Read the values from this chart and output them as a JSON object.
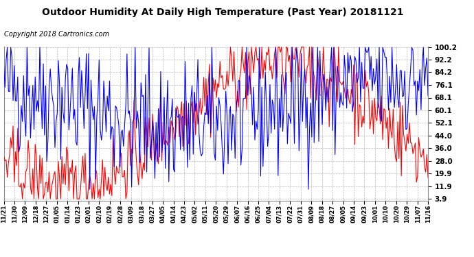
{
  "title": "Outdoor Humidity At Daily High Temperature (Past Year) 20181121",
  "copyright": "Copyright 2018 Cartronics.com",
  "yticks": [
    3.9,
    11.9,
    19.9,
    28.0,
    36.0,
    44.0,
    52.1,
    60.1,
    68.1,
    76.1,
    84.2,
    92.2,
    100.2
  ],
  "ymin": 3.9,
  "ymax": 100.2,
  "bg_color": "#ffffff",
  "plot_bg_color": "#ffffff",
  "grid_color": "#bbbbbb",
  "humidity_color": "#0000ff",
  "temp_color": "#ff0000",
  "legend_humidity_bg": "#0000cc",
  "legend_temp_bg": "#cc0000",
  "title_fontsize": 10,
  "copyright_fontsize": 7,
  "xtick_fontsize": 6,
  "ytick_fontsize": 7.5,
  "num_points": 366,
  "xtick_labels": [
    "11/21",
    "11/30",
    "12/09",
    "12/18",
    "12/27",
    "01/05",
    "01/14",
    "01/23",
    "02/01",
    "02/10",
    "02/19",
    "02/28",
    "03/09",
    "03/18",
    "03/27",
    "04/05",
    "04/14",
    "04/23",
    "05/02",
    "05/11",
    "05/20",
    "05/29",
    "06/07",
    "06/16",
    "06/25",
    "07/04",
    "07/13",
    "07/22",
    "07/31",
    "08/09",
    "08/18",
    "08/27",
    "09/05",
    "09/14",
    "09/23",
    "10/01",
    "10/10",
    "10/20",
    "10/29",
    "11/07",
    "11/16"
  ]
}
